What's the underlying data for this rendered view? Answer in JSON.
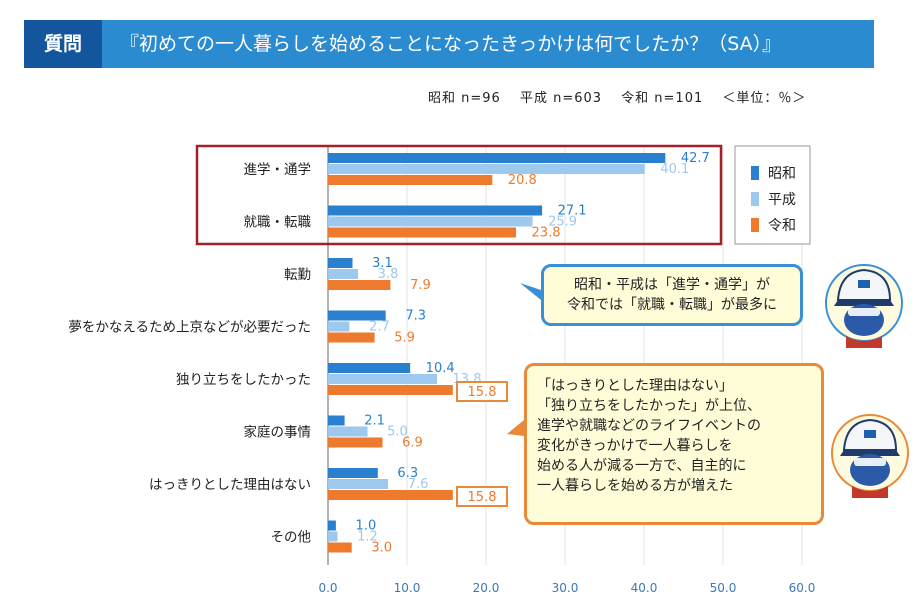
{
  "header": {
    "tag": "質問",
    "title": "『初めての一人暮らしを始めることになったきっかけは何でしたか？（SA）』"
  },
  "sample_info": {
    "showa": "昭和 n=96",
    "heisei": "平成 n=603",
    "reiwa": "令和 n=101",
    "unit": "＜単位：％＞"
  },
  "colors": {
    "showa": "#2a7fcf",
    "heisei": "#9ec9ee",
    "reiwa": "#ee7a2e",
    "frame": "#a3202b"
  },
  "chart_data": {
    "type": "bar",
    "orientation": "horizontal",
    "categories": [
      "進学・通学",
      "就職・転職",
      "転勤",
      "夢をかなえるため上京などが必要だった",
      "独り立ちをしたかった",
      "家庭の事情",
      "はっきりとした理由はない",
      "その他"
    ],
    "series": [
      {
        "name": "昭和",
        "values": [
          42.7,
          27.1,
          3.1,
          7.3,
          10.4,
          2.1,
          6.3,
          1.0
        ]
      },
      {
        "name": "平成",
        "values": [
          40.1,
          25.9,
          3.8,
          2.7,
          13.8,
          5.0,
          7.6,
          1.2
        ]
      },
      {
        "name": "令和",
        "values": [
          20.8,
          23.8,
          7.9,
          5.9,
          15.8,
          6.9,
          15.8,
          3.0
        ]
      }
    ],
    "xlim": [
      0,
      60
    ],
    "xticks": [
      "0.0",
      "10.0",
      "20.0",
      "30.0",
      "40.0",
      "50.0",
      "60.0"
    ],
    "legend": [
      "昭和",
      "平成",
      "令和"
    ],
    "highlighted_categories": [
      "進学・通学",
      "就職・転職"
    ],
    "boxed_values": [
      "独り立ちをしたかった",
      "はっきりとした理由はない"
    ]
  },
  "callouts": {
    "blue": [
      "昭和・平成は「進学・通学」が",
      "令和では「就職・転職」が最多に"
    ],
    "orange": [
      "「はっきりとした理由はない」",
      "「独り立ちをしたかった」が上位、",
      "進学や就職などのライフイベントの",
      "変化がきっかけで一人暮らしを",
      "始める人が減る一方で、自主的に",
      "一人暮らしを始める方が増えた"
    ]
  }
}
